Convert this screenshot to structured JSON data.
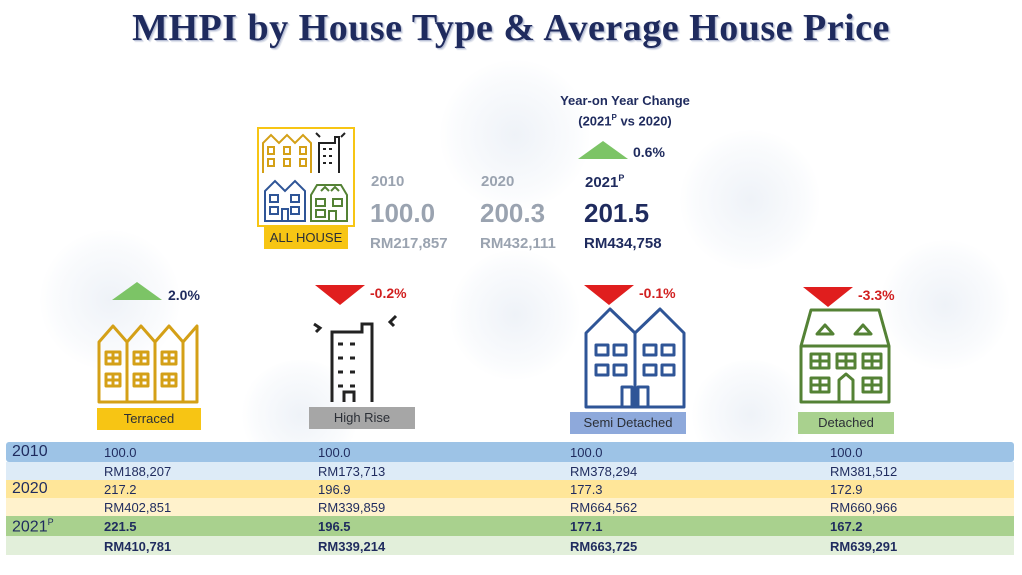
{
  "title": "MHPI by House Type & Average House Price",
  "yoy": {
    "heading_line1": "Year-on Year Change",
    "heading_line2": "(2021",
    "heading_sup": "P",
    "heading_line2_end": " vs 2020)",
    "all_house_change": "0.6%"
  },
  "all_house": {
    "label": "ALL HOUSE",
    "years": [
      {
        "year": "2010",
        "index": "100.0",
        "price": "RM217,857"
      },
      {
        "year": "2020",
        "index": "200.3",
        "price": "RM432,111"
      },
      {
        "year": "2021",
        "sup": "P",
        "index": "201.5",
        "price": "RM434,758"
      }
    ]
  },
  "types": [
    {
      "label": "Terraced",
      "change": "2.0%",
      "direction": "up",
      "color": "#f7c514"
    },
    {
      "label": "High Rise",
      "change": "-0.2%",
      "direction": "down",
      "color": "#a6a6a6"
    },
    {
      "label": "Semi Detached",
      "change": "-0.1%",
      "direction": "down",
      "color": "#8ea9db"
    },
    {
      "label": "Detached",
      "change": "-3.3%",
      "direction": "down",
      "color": "#a9d18e"
    }
  ],
  "table": {
    "rows": [
      {
        "year": "2010",
        "sup": "",
        "index": [
          "100.0",
          "100.0",
          "100.0",
          "100.0"
        ],
        "price": [
          "RM188,207",
          "RM173,713",
          "RM378,294",
          "RM381,512"
        ]
      },
      {
        "year": "2020",
        "sup": "",
        "index": [
          "217.2",
          "196.9",
          "177.3",
          "172.9"
        ],
        "price": [
          "RM402,851",
          "RM339,859",
          "RM664,562",
          "RM660,966"
        ]
      },
      {
        "year": "2021",
        "sup": "P",
        "index": [
          "221.5",
          "196.5",
          "177.1",
          "167.2"
        ],
        "price": [
          "RM410,781",
          "RM339,214",
          "RM663,725",
          "RM639,291"
        ]
      }
    ]
  },
  "colors": {
    "title": "#1f2b5e",
    "up_arrow": "#7cc466",
    "down_arrow": "#e01e1e",
    "row_2010": "#9dc3e6",
    "row_2020": "#ffe699",
    "row_2021": "#a9d18e"
  }
}
